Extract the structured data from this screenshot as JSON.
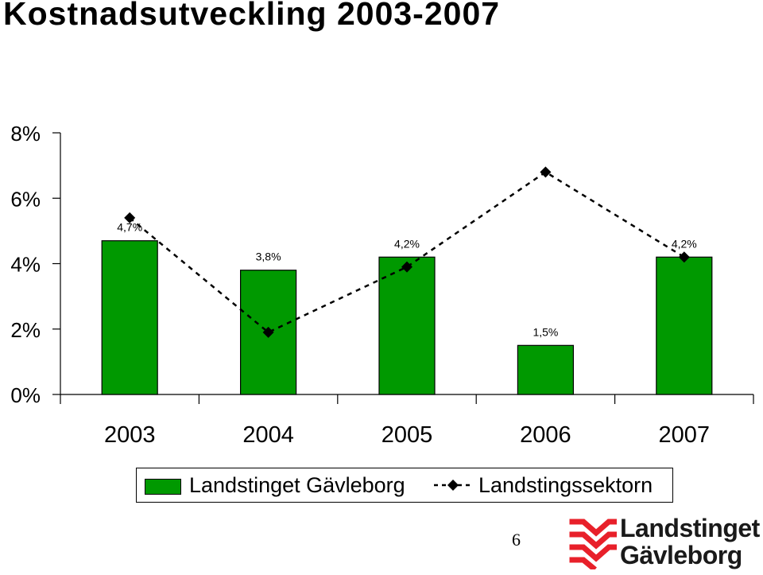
{
  "title": "Kostnadsutveckling 2003-2007",
  "chart_data": {
    "type": "bar",
    "categories": [
      "2003",
      "2004",
      "2005",
      "2006",
      "2007"
    ],
    "series": [
      {
        "name": "Landstinget Gävleborg",
        "kind": "bar",
        "color": "#009900",
        "values": [
          4.7,
          3.8,
          4.2,
          1.5,
          4.2
        ],
        "labels": [
          "4,7%",
          "3,8%",
          "4,2%",
          "1,5%",
          "4,2%"
        ]
      },
      {
        "name": "Landstingssektorn",
        "kind": "line",
        "style": "dashed",
        "marker": "diamond",
        "color": "#000000",
        "values": [
          5.4,
          1.9,
          3.9,
          6.8,
          4.2
        ]
      }
    ],
    "yticks": [
      "0%",
      "2%",
      "4%",
      "6%",
      "8%"
    ],
    "ytick_values": [
      0,
      2,
      4,
      6,
      8
    ],
    "ylim": [
      0,
      8
    ],
    "grid": false,
    "legend_position": "bottom"
  },
  "legend": {
    "item1": "Landstinget Gävleborg",
    "item2": "Landstingssektorn"
  },
  "page_number": "6",
  "logo": {
    "line1": "Landstinget",
    "line2": "Gävleborg",
    "color": "#e8202a"
  }
}
